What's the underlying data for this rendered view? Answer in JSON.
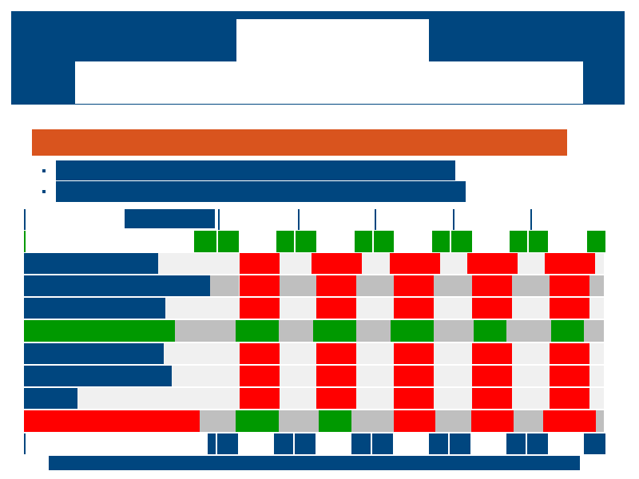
{
  "header": {
    "title": "",
    "subtitle": ""
  },
  "section_banner": {
    "label": ""
  },
  "bullets": [
    "",
    ""
  ],
  "timeline": {
    "label": ""
  },
  "footer": {
    "label": ""
  },
  "colors": {
    "navy": "#00467f",
    "orange": "#d9541e",
    "green": "#009900",
    "red": "#ff0000",
    "gray": "#bfbfbf",
    "light_gray": "#f0f0f0"
  },
  "rows": [
    {
      "label": "",
      "bar_color": "navy"
    },
    {
      "label": "",
      "bar_color": "navy"
    },
    {
      "label": "",
      "bar_color": "navy"
    },
    {
      "label": "",
      "bar_color": "green"
    },
    {
      "label": "",
      "bar_color": "navy"
    },
    {
      "label": "",
      "bar_color": "navy"
    },
    {
      "label": "",
      "bar_color": "navy"
    },
    {
      "label": "",
      "bar_color": "red"
    }
  ]
}
